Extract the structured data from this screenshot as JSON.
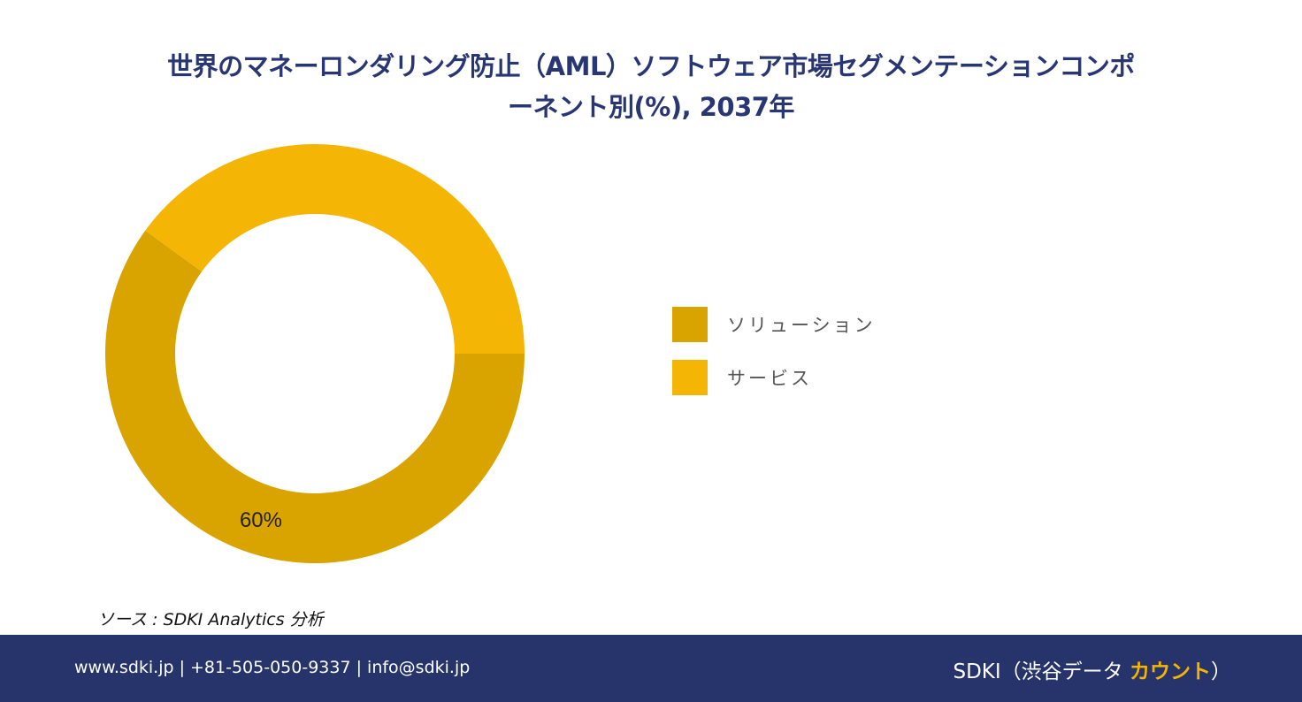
{
  "title_line1": "世界のマネーロンダリング防止（AML）ソフトウェア市場セグメンテーションコンポ",
  "title_line2": "ーネント別(%), 2037年",
  "chart_data": {
    "type": "pie",
    "donut": true,
    "categories": [
      "ソリューション",
      "サービス"
    ],
    "values": [
      60,
      40
    ],
    "colors": [
      "#DAA400",
      "#F5B505"
    ],
    "data_labels": [
      "60%",
      ""
    ],
    "legend_placement": "right"
  },
  "source": "ソース : SDKI Analytics  分析",
  "footer": {
    "contact": "www.sdki.jp | +81-505-050-9337 | info@sdki.jp",
    "brand_prefix": "SDKI（渋谷データ ",
    "brand_accent": "カウント",
    "brand_suffix": "）",
    "background_color": "#27336B",
    "accent_color": "#F5B400"
  }
}
